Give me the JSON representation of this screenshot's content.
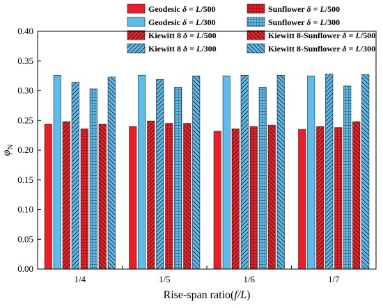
{
  "chart_data": {
    "type": "bar",
    "xlabel_pre": "Rise-span ratio(",
    "xlabel_ital": "f/L",
    "xlabel_post": ")",
    "ylabel_main": "φ",
    "ylabel_sub": "N",
    "ylim": [
      0.0,
      0.4
    ],
    "yticks": [
      "0.00",
      "0.05",
      "0.10",
      "0.15",
      "0.20",
      "0.25",
      "0.30",
      "0.35",
      "0.40"
    ],
    "categories": [
      "1/4",
      "1/5",
      "1/6",
      "1/7"
    ],
    "legend_position": "top",
    "series": [
      {
        "name": "Geodesic δ = L/500",
        "name_parts": [
          "Geodesic ",
          "δ",
          " = ",
          "L",
          "/500"
        ],
        "color": "#ee1c25",
        "pattern": "solid",
        "values": [
          0.244,
          0.24,
          0.232,
          0.235
        ]
      },
      {
        "name": "Geodesic δ = L/300",
        "name_parts": [
          "Geodesic ",
          "δ",
          " = ",
          "L",
          "/300"
        ],
        "color": "#5bbcf0",
        "pattern": "solid",
        "values": [
          0.326,
          0.326,
          0.325,
          0.325
        ]
      },
      {
        "name": "Kiewitt 8 δ = L/500",
        "name_parts": [
          "Kiewitt 8 ",
          "δ",
          " = ",
          "L",
          "/500"
        ],
        "color": "#ee1c25",
        "pattern": "hatch",
        "values": [
          0.248,
          0.249,
          0.236,
          0.24
        ]
      },
      {
        "name": "Kiewitt 8 δ = L/300",
        "name_parts": [
          "Kiewitt 8 ",
          "δ",
          " = ",
          "L",
          "/300"
        ],
        "color": "#5bbcf0",
        "pattern": "hatch",
        "values": [
          0.314,
          0.319,
          0.326,
          0.328
        ]
      },
      {
        "name": "Sunflower δ = L/500",
        "name_parts": [
          "Sunflower ",
          "δ",
          " = ",
          "L",
          "/500"
        ],
        "color": "#ee1c25",
        "pattern": "grid",
        "values": [
          0.236,
          0.245,
          0.24,
          0.238
        ]
      },
      {
        "name": "Sunflower δ = L/300",
        "name_parts": [
          "Sunflower ",
          "δ",
          " = ",
          "L",
          "/300"
        ],
        "color": "#5bbcf0",
        "pattern": "grid",
        "values": [
          0.303,
          0.306,
          0.306,
          0.308
        ]
      },
      {
        "name": "Kiewitt 8-Sunflower δ = L/500",
        "name_parts": [
          "Kiewitt 8-Sunflower ",
          "δ",
          " = ",
          "L",
          "/500"
        ],
        "color": "#ee1c25",
        "pattern": "backhatch",
        "values": [
          0.244,
          0.245,
          0.242,
          0.248
        ]
      },
      {
        "name": "Kiewitt 8-Sunflower δ = L/300",
        "name_parts": [
          "Kiewitt 8-Sunflower ",
          "δ",
          " = ",
          "L",
          "/300"
        ],
        "color": "#5bbcf0",
        "pattern": "backhatch",
        "values": [
          0.323,
          0.325,
          0.326,
          0.327
        ]
      }
    ]
  }
}
